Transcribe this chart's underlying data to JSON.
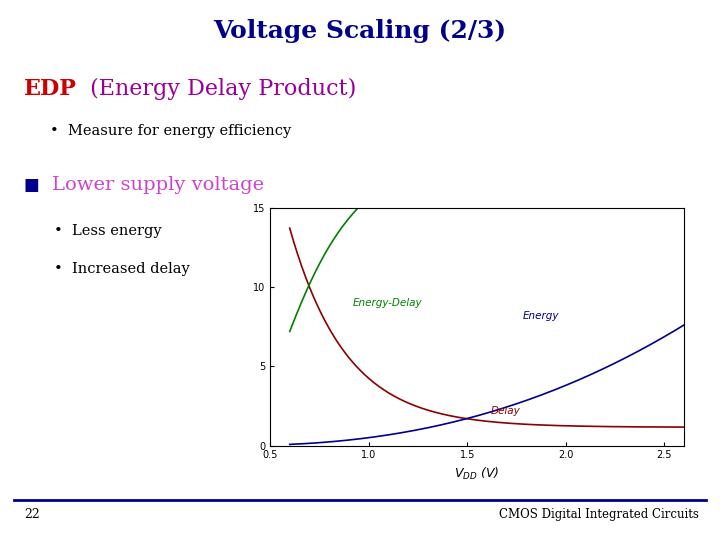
{
  "title": "Voltage Scaling (2/3)",
  "title_color": "#00008B",
  "title_fontsize": 18,
  "edp_label": "EDP",
  "edp_label_color": "#CC0000",
  "edp_rest": " (Energy Delay Product)",
  "edp_rest_color": "#990099",
  "bullet1": "Measure for energy efficiency",
  "bullet_color": "#000000",
  "square_color": "#00008B",
  "lower_label": "Lower supply voltage",
  "lower_color": "#CC44CC",
  "bullet2": "Less energy",
  "bullet3": "Increased delay",
  "ylabel_vals": [
    0,
    5,
    10,
    15
  ],
  "xmin": 0.5,
  "xmax": 2.6,
  "ymin": 0,
  "ymax": 15,
  "delay_color": "#8B0000",
  "energy_color": "#00008B",
  "energy_delay_color": "#008000",
  "page_num": "22",
  "footer_text": "CMOS Digital Integrated Circuits",
  "footer_line_color": "#00008B",
  "background_color": "#FFFFFF"
}
